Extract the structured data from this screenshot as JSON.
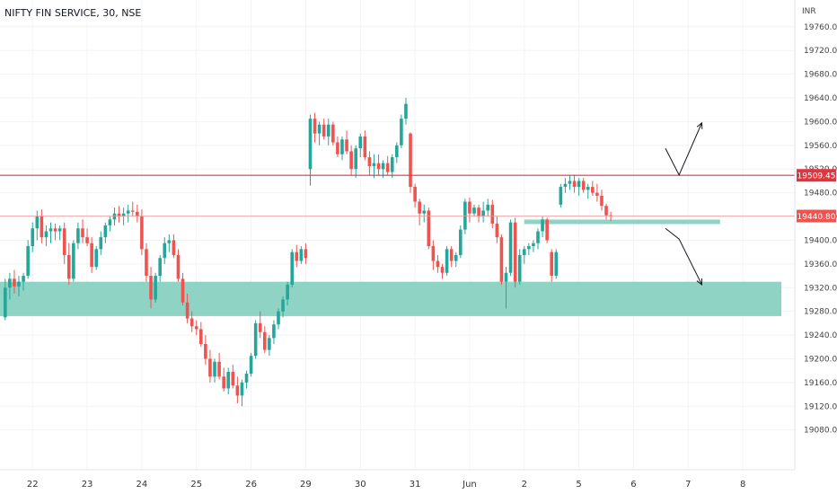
{
  "chart_data": {
    "type": "candlestick",
    "title": "NIFTY FIN SERVICE, 30, NSE",
    "currency": "INR",
    "ylim": [
      19050,
      19790
    ],
    "y_ticks": [
      19080,
      19120,
      19160,
      19200,
      19240,
      19280,
      19320,
      19360,
      19400,
      19440,
      19480,
      19520,
      19560,
      19600,
      19640,
      19680,
      19720,
      19760
    ],
    "y_tick_labels": [
      "19080.00",
      "19120.00",
      "19160.00",
      "19200.00",
      "19240.00",
      "19280.00",
      "19320.00",
      "19360.00",
      "19400.00",
      "19440.00",
      "19480.00",
      "19520.00",
      "19560.00",
      "19600.00",
      "19640.00",
      "19680.00",
      "19720.00",
      "19760.00"
    ],
    "x_ticks": [
      {
        "label": "22",
        "index": 6
      },
      {
        "label": "23",
        "index": 18
      },
      {
        "label": "24",
        "index": 30
      },
      {
        "label": "25",
        "index": 42
      },
      {
        "label": "26",
        "index": 54
      },
      {
        "label": "29",
        "index": 66
      },
      {
        "label": "30",
        "index": 78
      },
      {
        "label": "31",
        "index": 90
      },
      {
        "label": "Jun",
        "index": 102
      },
      {
        "label": "2",
        "index": 114
      },
      {
        "label": "5",
        "index": 126
      },
      {
        "label": "6",
        "index": 138
      },
      {
        "label": "7",
        "index": 150
      },
      {
        "label": "8",
        "index": 162
      }
    ],
    "colors": {
      "up": "#26a69a",
      "down": "#ef5350",
      "zone": "#8fd3c5",
      "resistance": "#e0353f",
      "price_line": "#ef9a9a"
    },
    "resistance_level": {
      "value": 19509.45,
      "label": "19509.45"
    },
    "last_price": {
      "value": 19440.8,
      "label": "19440.80"
    },
    "support_zone": {
      "from": 19272,
      "to": 19330
    },
    "small_zone": {
      "value": 19431,
      "from_index": 114,
      "to_index": 157
    },
    "arrows": [
      {
        "points": [
          [
            145,
            19555
          ],
          [
            148,
            19510
          ],
          [
            153,
            19598
          ]
        ]
      },
      {
        "points": [
          [
            145,
            19420
          ],
          [
            148,
            19402
          ],
          [
            153,
            19325
          ]
        ]
      }
    ],
    "candles": [
      [
        19270,
        19335,
        19265,
        19320
      ],
      [
        19320,
        19345,
        19300,
        19335
      ],
      [
        19335,
        19350,
        19310,
        19322
      ],
      [
        19322,
        19340,
        19305,
        19330
      ],
      [
        19330,
        19345,
        19315,
        19340
      ],
      [
        19340,
        19400,
        19335,
        19390
      ],
      [
        19390,
        19430,
        19380,
        19420
      ],
      [
        19420,
        19450,
        19400,
        19440
      ],
      [
        19440,
        19452,
        19395,
        19405
      ],
      [
        19405,
        19425,
        19390,
        19415
      ],
      [
        19415,
        19430,
        19395,
        19420
      ],
      [
        19420,
        19428,
        19400,
        19415
      ],
      [
        19415,
        19425,
        19400,
        19420
      ],
      [
        19420,
        19430,
        19360,
        19375
      ],
      [
        19375,
        19395,
        19325,
        19335
      ],
      [
        19335,
        19400,
        19330,
        19395
      ],
      [
        19395,
        19430,
        19385,
        19420
      ],
      [
        19420,
        19435,
        19395,
        19405
      ],
      [
        19405,
        19420,
        19390,
        19395
      ],
      [
        19395,
        19405,
        19345,
        19355
      ],
      [
        19355,
        19390,
        19350,
        19385
      ],
      [
        19385,
        19415,
        19375,
        19405
      ],
      [
        19405,
        19430,
        19395,
        19425
      ],
      [
        19425,
        19440,
        19415,
        19435
      ],
      [
        19435,
        19455,
        19425,
        19445
      ],
      [
        19445,
        19458,
        19430,
        19440
      ],
      [
        19440,
        19455,
        19425,
        19445
      ],
      [
        19445,
        19460,
        19430,
        19450
      ],
      [
        19450,
        19465,
        19440,
        19448
      ],
      [
        19448,
        19460,
        19430,
        19440
      ],
      [
        19440,
        19452,
        19375,
        19385
      ],
      [
        19385,
        19395,
        19330,
        19340
      ],
      [
        19340,
        19355,
        19285,
        19300
      ],
      [
        19300,
        19345,
        19295,
        19340
      ],
      [
        19340,
        19375,
        19330,
        19370
      ],
      [
        19370,
        19405,
        19360,
        19395
      ],
      [
        19395,
        19410,
        19380,
        19400
      ],
      [
        19400,
        19410,
        19370,
        19375
      ],
      [
        19375,
        19385,
        19330,
        19335
      ],
      [
        19335,
        19345,
        19290,
        19295
      ],
      [
        19295,
        19310,
        19260,
        19268
      ],
      [
        19268,
        19280,
        19245,
        19255
      ],
      [
        19255,
        19265,
        19240,
        19250
      ],
      [
        19250,
        19262,
        19220,
        19225
      ],
      [
        19225,
        19240,
        19190,
        19200
      ],
      [
        19200,
        19215,
        19160,
        19170
      ],
      [
        19170,
        19200,
        19160,
        19195
      ],
      [
        19195,
        19210,
        19165,
        19170
      ],
      [
        19170,
        19185,
        19145,
        19150
      ],
      [
        19150,
        19185,
        19140,
        19178
      ],
      [
        19178,
        19190,
        19150,
        19155
      ],
      [
        19155,
        19170,
        19125,
        19138
      ],
      [
        19138,
        19165,
        19120,
        19160
      ],
      [
        19160,
        19180,
        19150,
        19175
      ],
      [
        19175,
        19210,
        19170,
        19205
      ],
      [
        19205,
        19265,
        19200,
        19260
      ],
      [
        19260,
        19280,
        19235,
        19245
      ],
      [
        19245,
        19255,
        19210,
        19215
      ],
      [
        19215,
        19240,
        19205,
        19235
      ],
      [
        19235,
        19265,
        19225,
        19258
      ],
      [
        19258,
        19285,
        19250,
        19280
      ],
      [
        19280,
        19305,
        19270,
        19300
      ],
      [
        19300,
        19330,
        19290,
        19325
      ],
      [
        19325,
        19385,
        19320,
        19380
      ],
      [
        19380,
        19392,
        19355,
        19365
      ],
      [
        19365,
        19390,
        19360,
        19385
      ],
      [
        19385,
        19395,
        19360,
        19370
      ],
      [
        19520,
        19612,
        19492,
        19605
      ],
      [
        19605,
        19615,
        19565,
        19580
      ],
      [
        19580,
        19600,
        19560,
        19595
      ],
      [
        19595,
        19605,
        19570,
        19575
      ],
      [
        19575,
        19605,
        19560,
        19595
      ],
      [
        19595,
        19600,
        19560,
        19565
      ],
      [
        19565,
        19575,
        19540,
        19545
      ],
      [
        19545,
        19575,
        19535,
        19570
      ],
      [
        19570,
        19585,
        19545,
        19550
      ],
      [
        19550,
        19560,
        19510,
        19520
      ],
      [
        19520,
        19560,
        19505,
        19555
      ],
      [
        19555,
        19580,
        19540,
        19575
      ],
      [
        19575,
        19585,
        19535,
        19540
      ],
      [
        19540,
        19550,
        19510,
        19525
      ],
      [
        19525,
        19545,
        19505,
        19530
      ],
      [
        19530,
        19545,
        19510,
        19520
      ],
      [
        19520,
        19535,
        19505,
        19530
      ],
      [
        19530,
        19542,
        19510,
        19515
      ],
      [
        19515,
        19545,
        19505,
        19540
      ],
      [
        19540,
        19565,
        19530,
        19560
      ],
      [
        19560,
        19612,
        19555,
        19605
      ],
      [
        19605,
        19640,
        19595,
        19630
      ],
      [
        19580,
        19582,
        19480,
        19490
      ],
      [
        19490,
        19495,
        19455,
        19465
      ],
      [
        19465,
        19470,
        19425,
        19445
      ],
      [
        19445,
        19460,
        19430,
        19450
      ],
      [
        19450,
        19455,
        19385,
        19390
      ],
      [
        19390,
        19400,
        19350,
        19365
      ],
      [
        19365,
        19375,
        19345,
        19355
      ],
      [
        19355,
        19360,
        19335,
        19345
      ],
      [
        19345,
        19390,
        19340,
        19385
      ],
      [
        19385,
        19390,
        19355,
        19365
      ],
      [
        19365,
        19380,
        19355,
        19375
      ],
      [
        19375,
        19425,
        19370,
        19418
      ],
      [
        19418,
        19470,
        19410,
        19465
      ],
      [
        19465,
        19472,
        19430,
        19445
      ],
      [
        19445,
        19460,
        19440,
        19455
      ],
      [
        19455,
        19460,
        19430,
        19440
      ],
      [
        19440,
        19465,
        19430,
        19450
      ],
      [
        19450,
        19470,
        19440,
        19460
      ],
      [
        19460,
        19468,
        19420,
        19428
      ],
      [
        19428,
        19440,
        19395,
        19405
      ],
      [
        19405,
        19410,
        19325,
        19330
      ],
      [
        19330,
        19355,
        19285,
        19345
      ],
      [
        19345,
        19435,
        19340,
        19430
      ],
      [
        19430,
        19438,
        19320,
        19330
      ],
      [
        19330,
        19385,
        19325,
        19375
      ],
      [
        19375,
        19390,
        19360,
        19385
      ],
      [
        19385,
        19395,
        19375,
        19390
      ],
      [
        19390,
        19400,
        19380,
        19395
      ],
      [
        19395,
        19420,
        19385,
        19415
      ],
      [
        19415,
        19440,
        19405,
        19435
      ],
      [
        19435,
        19438,
        19395,
        19400
      ],
      [
        19380,
        19385,
        19330,
        19340
      ],
      [
        19340,
        19385,
        19335,
        19380
      ],
      [
        19460,
        19495,
        19455,
        19490
      ],
      [
        19490,
        19505,
        19480,
        19495
      ],
      [
        19495,
        19510,
        19485,
        19500
      ],
      [
        19500,
        19510,
        19480,
        19490
      ],
      [
        19490,
        19505,
        19475,
        19500
      ],
      [
        19500,
        19505,
        19480,
        19485
      ],
      [
        19485,
        19495,
        19470,
        19490
      ],
      [
        19490,
        19500,
        19475,
        19480
      ],
      [
        19480,
        19495,
        19465,
        19475
      ],
      [
        19475,
        19485,
        19450,
        19458
      ],
      [
        19458,
        19462,
        19435,
        19442
      ],
      [
        19442,
        19448,
        19432,
        19440
      ]
    ]
  }
}
